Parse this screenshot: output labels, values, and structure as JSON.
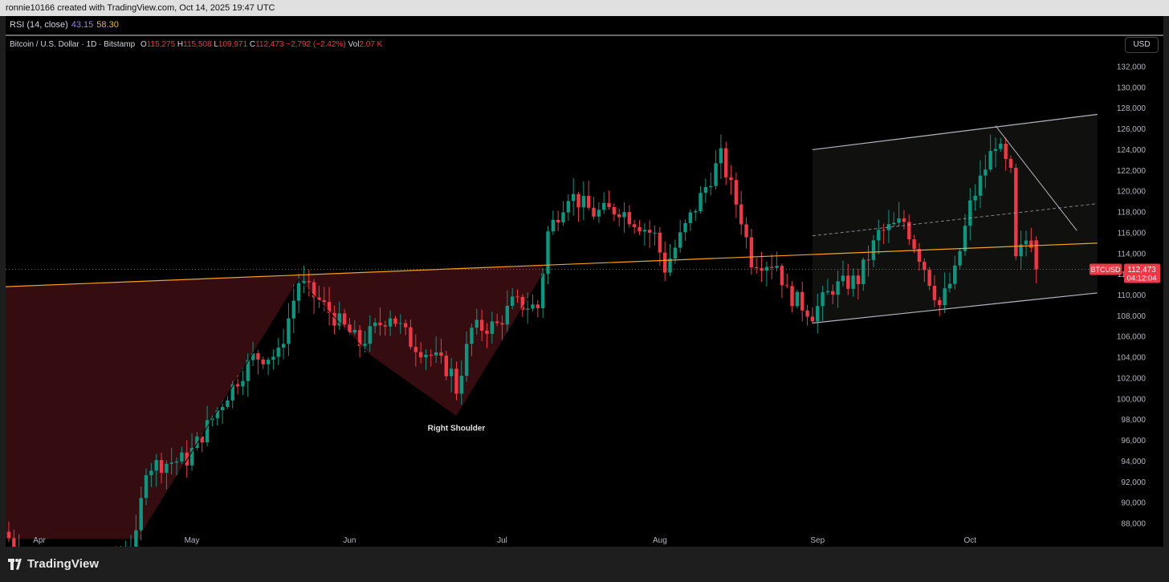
{
  "header": {
    "created_text": "ronnie10166 created with TradingView.com, Oct 14, 2025 19:47 UTC"
  },
  "rsi": {
    "label": "RSI (14, close)",
    "value1": "43.15",
    "value2": "58.30"
  },
  "legend": {
    "symbol": "Bitcoin / U.S. Dollar · 1D · Bitstamp",
    "o_label": "O",
    "o_value": "115,275",
    "h_label": "H",
    "h_value": "115,508",
    "l_label": "L",
    "l_value": "109,971",
    "c_label": "C",
    "c_value": "112,473",
    "change": "−2,792 (−2.42%)",
    "vol_label": "Vol",
    "vol_value": "2.07 K"
  },
  "currency_button": "USD",
  "price_tag": {
    "symbol": "BTCUSD",
    "price": "112,473",
    "countdown": "04:12:04"
  },
  "annotation": {
    "text": "Right Shoulder"
  },
  "footer": {
    "logo_text": "TradingView"
  },
  "colors": {
    "up": "#089981",
    "down": "#f23645",
    "background": "#000000",
    "neckline": "#f7a21b",
    "channel": "#b2b5be"
  },
  "chart_data": {
    "type": "candlestick",
    "y_ticks": [
      88000,
      90000,
      92000,
      94000,
      96000,
      98000,
      100000,
      102000,
      104000,
      106000,
      108000,
      110000,
      112000,
      114000,
      116000,
      118000,
      120000,
      122000,
      124000,
      126000,
      128000,
      130000,
      132000
    ],
    "y_tick_labels": [
      "88,000",
      "90,000",
      "92,000",
      "94,000",
      "96,000",
      "98,000",
      "100,000",
      "102,000",
      "104,000",
      "106,000",
      "108,000",
      "110,000",
      "112,000",
      "114,000",
      "116,000",
      "118,000",
      "120,000",
      "122,000",
      "124,000",
      "126,000",
      "128,000",
      "130,000",
      "132,000"
    ],
    "ylim": [
      86500,
      134000
    ],
    "x_labels": [
      {
        "label": "Apr",
        "date": "2025-04-01"
      },
      {
        "label": "May",
        "date": "2025-05-01"
      },
      {
        "label": "Jun",
        "date": "2025-06-01"
      },
      {
        "label": "Jul",
        "date": "2025-07-01"
      },
      {
        "label": "Aug",
        "date": "2025-08-01"
      },
      {
        "label": "Sep",
        "date": "2025-09-01"
      },
      {
        "label": "Oct",
        "date": "2025-10-01"
      }
    ],
    "last_close": 112473,
    "overlays": {
      "neckline": {
        "start": [
          "2025-03-25",
          110800
        ],
        "end": [
          "2025-10-26",
          115000
        ]
      },
      "head_shoulders": [
        [
          "2025-04-21",
          87000
        ],
        [
          "2025-05-22",
          111500
        ],
        [
          "2025-06-05",
          104200
        ],
        [
          "2025-06-22",
          98300
        ],
        [
          "2025-07-09",
          112000
        ]
      ],
      "channel_upper": [
        [
          "2025-08-31",
          124000
        ],
        [
          "2025-10-26",
          127400
        ]
      ],
      "channel_lower": [
        [
          "2025-08-31",
          107300
        ],
        [
          "2025-10-26",
          110200
        ]
      ],
      "channel_mid": [
        [
          "2025-08-31",
          115700
        ],
        [
          "2025-10-26",
          118800
        ]
      ],
      "trend_down": [
        [
          "2025-10-06",
          126300
        ],
        [
          "2025-10-22",
          116200
        ]
      ]
    },
    "annotation": {
      "date": "2025-06-22",
      "price": 98000
    }
  }
}
